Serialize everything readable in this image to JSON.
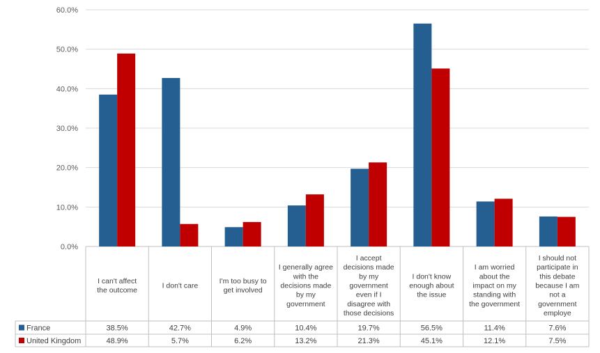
{
  "chart_data": {
    "type": "bar",
    "categories": [
      "I can't affect the outcome",
      "I don't care",
      "I'm too busy to get involved",
      "I generally agree with the decisions made by my government",
      "I accept decisions made by my government even if I disagree with those decisions",
      "I don't know enough about the issue",
      "I am worried about the impact on my standing with the government",
      "I should not participate in this debate because I am not a government employe"
    ],
    "category_lines": [
      [
        "I can't affect",
        "the outcome"
      ],
      [
        "I don't care"
      ],
      [
        "I'm too busy to",
        "get involved"
      ],
      [
        "I generally agree",
        "with the",
        "decisions made",
        "by my",
        "government"
      ],
      [
        "I accept",
        "decisions made",
        "by my",
        "government",
        "even if I",
        "disagree with",
        "those decisions"
      ],
      [
        "I don't know",
        "enough about",
        "the issue"
      ],
      [
        "I am worried",
        "about the",
        "impact on my",
        "standing with",
        "the government"
      ],
      [
        "I should not",
        "participate in",
        "this debate",
        "because I am",
        "not a",
        "government",
        "employe"
      ]
    ],
    "series": [
      {
        "name": "France",
        "color": "#255E91",
        "values": [
          38.5,
          42.7,
          4.9,
          10.4,
          19.7,
          56.5,
          11.4,
          7.6
        ],
        "labels": [
          "38.5%",
          "42.7%",
          "4.9%",
          "10.4%",
          "19.7%",
          "56.5%",
          "11.4%",
          "7.6%"
        ]
      },
      {
        "name": "United Kingdom",
        "color": "#C00000",
        "values": [
          48.9,
          5.7,
          6.2,
          13.2,
          21.3,
          45.1,
          12.1,
          7.5
        ],
        "labels": [
          "48.9%",
          "5.7%",
          "6.2%",
          "13.2%",
          "21.3%",
          "45.1%",
          "12.1%",
          "7.5%"
        ]
      }
    ],
    "yticks": [
      "0.0%",
      "10.0%",
      "20.0%",
      "30.0%",
      "40.0%",
      "50.0%",
      "60.0%"
    ],
    "ylim": [
      0,
      60
    ],
    "grid": true,
    "legend": "data-table",
    "title": "",
    "xlabel": "",
    "ylabel": ""
  }
}
